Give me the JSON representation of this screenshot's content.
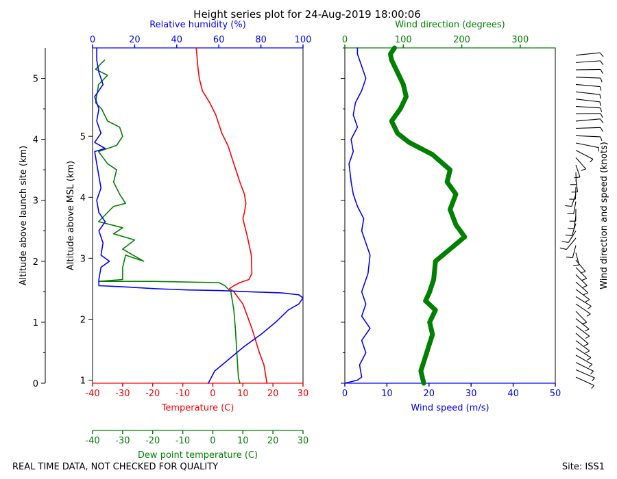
{
  "title": "Height series plot for 24-Aug-2019 18:00:06",
  "footer_left": "REAL TIME DATA, NOT CHECKED FOR QUALITY",
  "footer_right": "Site: ISS1",
  "colors": {
    "red": "#ff0000",
    "green": "#008000",
    "blue": "#0000ff",
    "black": "#000000"
  },
  "chart_data": [
    {
      "type": "line",
      "name": "thermo-panel",
      "left_axis_label": "Altitude above launch site (km)",
      "left_ticks": [
        0,
        1,
        2,
        3,
        4,
        5
      ],
      "right_axis_label": "Altitude above MSL (km)",
      "right_ticks": [
        1,
        2,
        3,
        4,
        5
      ],
      "msl_offset_km": 0.95,
      "ylim": [
        0,
        5.5
      ],
      "x_axes": [
        {
          "id": "temp",
          "label": "Temperature (C)",
          "color": "#ff0000",
          "range": [
            -40,
            30
          ],
          "ticks": [
            -40,
            -30,
            -20,
            -10,
            0,
            10,
            20,
            30
          ]
        },
        {
          "id": "dew",
          "label": "Dew point temperature (C)",
          "color": "#008000",
          "range": [
            -40,
            30
          ],
          "ticks": [
            -40,
            -30,
            -20,
            -10,
            0,
            10,
            20,
            30
          ]
        },
        {
          "id": "rh",
          "label": "Relative humidity (%)",
          "color": "#0000ff",
          "range": [
            0,
            100
          ],
          "ticks": [
            0,
            20,
            40,
            60,
            80,
            100
          ]
        }
      ],
      "series": [
        {
          "name": "Temperature",
          "axis": "temp",
          "color": "#ff0000",
          "points": [
            [
              18,
              0
            ],
            [
              17,
              0.3
            ],
            [
              15.5,
              0.5
            ],
            [
              13,
              0.9
            ],
            [
              10,
              1.3
            ],
            [
              7,
              1.5
            ],
            [
              5.5,
              1.55
            ],
            [
              7,
              1.6
            ],
            [
              9,
              1.65
            ],
            [
              12,
              1.7
            ],
            [
              13,
              1.8
            ],
            [
              12.8,
              2.1
            ],
            [
              11.5,
              2.4
            ],
            [
              10.5,
              2.6
            ],
            [
              10,
              2.7
            ],
            [
              10.5,
              2.8
            ],
            [
              11,
              2.95
            ],
            [
              10.5,
              3.1
            ],
            [
              9,
              3.3
            ],
            [
              7,
              3.6
            ],
            [
              5,
              3.9
            ],
            [
              3,
              4.1
            ],
            [
              1,
              4.4
            ],
            [
              -1,
              4.6
            ],
            [
              -3.5,
              4.8
            ],
            [
              -4.5,
              5.0
            ],
            [
              -5,
              5.2
            ],
            [
              -5.5,
              5.5
            ]
          ]
        },
        {
          "name": "Dew point",
          "axis": "dew",
          "color": "#008000",
          "points": [
            [
              9,
              0
            ],
            [
              8.5,
              0.1
            ],
            [
              8,
              0.5
            ],
            [
              7.5,
              0.9
            ],
            [
              7,
              1.2
            ],
            [
              6,
              1.5
            ],
            [
              4,
              1.6
            ],
            [
              2,
              1.65
            ],
            [
              -20,
              1.67
            ],
            [
              -30,
              1.67
            ],
            [
              -38,
              1.67
            ],
            [
              -30,
              1.7
            ],
            [
              -30,
              1.9
            ],
            [
              -29,
              2.1
            ],
            [
              -23,
              2.0
            ],
            [
              -30,
              2.2
            ],
            [
              -26,
              2.35
            ],
            [
              -33,
              2.45
            ],
            [
              -30,
              2.55
            ],
            [
              -38,
              2.65
            ],
            [
              -35,
              2.8
            ],
            [
              -33,
              2.9
            ],
            [
              -29,
              2.95
            ],
            [
              -31,
              3.1
            ],
            [
              -33,
              3.3
            ],
            [
              -32,
              3.5
            ],
            [
              -35,
              3.6
            ],
            [
              -38,
              3.8
            ],
            [
              -32,
              3.9
            ],
            [
              -30,
              4.05
            ],
            [
              -31,
              4.2
            ],
            [
              -35,
              4.3
            ],
            [
              -37,
              4.5
            ],
            [
              -39,
              4.6
            ],
            [
              -38,
              4.9
            ],
            [
              -35,
              5.05
            ],
            [
              -39,
              5.15
            ],
            [
              -36,
              5.3
            ]
          ]
        },
        {
          "name": "Relative humidity",
          "axis": "rh",
          "color": "#0000ff",
          "points": [
            [
              55,
              0
            ],
            [
              58,
              0.2
            ],
            [
              65,
              0.4
            ],
            [
              72,
              0.6
            ],
            [
              80,
              0.8
            ],
            [
              87,
              1.0
            ],
            [
              93,
              1.2
            ],
            [
              98,
              1.3
            ],
            [
              100,
              1.4
            ],
            [
              98,
              1.45
            ],
            [
              90,
              1.48
            ],
            [
              75,
              1.5
            ],
            [
              60,
              1.52
            ],
            [
              45,
              1.53
            ],
            [
              30,
              1.55
            ],
            [
              15,
              1.58
            ],
            [
              3,
              1.6
            ],
            [
              3,
              1.7
            ],
            [
              4,
              1.9
            ],
            [
              8,
              2.0
            ],
            [
              4,
              2.1
            ],
            [
              5,
              2.3
            ],
            [
              3,
              2.5
            ],
            [
              6,
              2.65
            ],
            [
              3,
              2.8
            ],
            [
              2,
              3.0
            ],
            [
              4,
              3.2
            ],
            [
              3,
              3.4
            ],
            [
              2,
              3.6
            ],
            [
              1,
              3.8
            ],
            [
              6,
              3.85
            ],
            [
              1,
              3.95
            ],
            [
              4,
              4.1
            ],
            [
              2,
              4.3
            ],
            [
              3,
              4.5
            ],
            [
              1,
              4.7
            ],
            [
              5,
              4.9
            ],
            [
              3,
              5.1
            ],
            [
              2,
              5.3
            ],
            [
              2,
              5.5
            ]
          ]
        }
      ]
    },
    {
      "type": "line",
      "name": "wind-panel",
      "ylim": [
        0,
        5.5
      ],
      "ylabel_right": "Wind direction and speed (knots)",
      "x_axes": [
        {
          "id": "wspd",
          "label": "Wind speed (m/s)",
          "color": "#0000ff",
          "range": [
            0,
            50
          ],
          "ticks": [
            0,
            10,
            20,
            30,
            40,
            50
          ]
        },
        {
          "id": "wdir",
          "label": "Wind direction (degrees)",
          "color": "#008000",
          "range": [
            0,
            360
          ],
          "ticks": [
            0,
            100,
            200,
            300
          ]
        }
      ],
      "series": [
        {
          "name": "Wind speed",
          "axis": "wspd",
          "color": "#0000ff",
          "points": [
            [
              0,
              0
            ],
            [
              3,
              0.05
            ],
            [
              4,
              0.1
            ],
            [
              3.5,
              0.3
            ],
            [
              5,
              0.5
            ],
            [
              4,
              0.7
            ],
            [
              6,
              0.9
            ],
            [
              4,
              1.1
            ],
            [
              5,
              1.3
            ],
            [
              4,
              1.5
            ],
            [
              5.5,
              1.8
            ],
            [
              6,
              2.1
            ],
            [
              5,
              2.3
            ],
            [
              4,
              2.5
            ],
            [
              4.5,
              2.7
            ],
            [
              3,
              2.9
            ],
            [
              2,
              3.1
            ],
            [
              1.5,
              3.3
            ],
            [
              1,
              3.6
            ],
            [
              2,
              3.8
            ],
            [
              1.5,
              4.0
            ],
            [
              3,
              4.2
            ],
            [
              2,
              4.4
            ],
            [
              2.5,
              4.6
            ],
            [
              4,
              4.8
            ],
            [
              5,
              5.0
            ],
            [
              4,
              5.2
            ],
            [
              3,
              5.4
            ],
            [
              3,
              5.5
            ]
          ]
        },
        {
          "name": "Wind direction",
          "axis": "wdir",
          "color": "#008000",
          "points": [
            [
              135,
              0
            ],
            [
              130,
              0.2
            ],
            [
              140,
              0.5
            ],
            [
              150,
              0.8
            ],
            [
              145,
              1.0
            ],
            [
              155,
              1.2
            ],
            [
              138,
              1.35
            ],
            [
              145,
              1.5
            ],
            [
              152,
              1.7
            ],
            [
              155,
              2.0
            ],
            [
              180,
              2.2
            ],
            [
              205,
              2.4
            ],
            [
              190,
              2.6
            ],
            [
              180,
              2.85
            ],
            [
              190,
              3.1
            ],
            [
              175,
              3.3
            ],
            [
              180,
              3.5
            ],
            [
              150,
              3.75
            ],
            [
              110,
              3.95
            ],
            [
              90,
              4.1
            ],
            [
              80,
              4.3
            ],
            [
              95,
              4.5
            ],
            [
              105,
              4.7
            ],
            [
              100,
              4.9
            ],
            [
              90,
              5.1
            ],
            [
              80,
              5.3
            ],
            [
              78,
              5.4
            ],
            [
              85,
              5.5
            ]
          ]
        }
      ]
    }
  ]
}
